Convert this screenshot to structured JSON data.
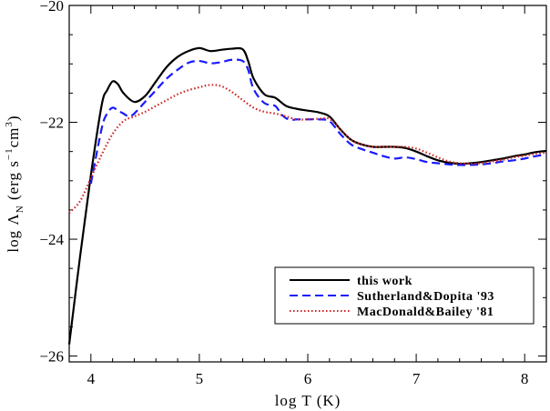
{
  "chart_data": {
    "type": "line",
    "xlabel": "log T (K)",
    "ylabel": {
      "main": "log Λ",
      "sub": "N",
      "units_open": " (erg s",
      "exp1": "−1",
      "units_mid": "cm",
      "exp2": "3",
      "units_close": ")"
    },
    "xlim": [
      3.8,
      8.2
    ],
    "ylim": [
      -26.1,
      -20.0
    ],
    "xticks": [
      4,
      5,
      6,
      7,
      8
    ],
    "xtick_labels": [
      "4",
      "5",
      "6",
      "7",
      "8"
    ],
    "yticks": [
      -26,
      -24,
      -22,
      -20
    ],
    "ytick_labels": [
      "−26",
      "−24",
      "−22",
      "−20"
    ],
    "grid": false,
    "legend_position": "bottom-right",
    "series": [
      {
        "name": "this work",
        "color": "#000000",
        "style": "solid",
        "x": [
          3.8,
          3.9,
          4.0,
          4.1,
          4.15,
          4.2,
          4.25,
          4.3,
          4.4,
          4.5,
          4.6,
          4.7,
          4.8,
          4.9,
          5.0,
          5.1,
          5.2,
          5.3,
          5.4,
          5.45,
          5.5,
          5.6,
          5.7,
          5.8,
          5.9,
          6.0,
          6.1,
          6.2,
          6.3,
          6.4,
          6.5,
          6.6,
          6.7,
          6.8,
          6.9,
          7.0,
          7.1,
          7.2,
          7.3,
          7.4,
          7.5,
          7.6,
          7.7,
          7.8,
          7.9,
          8.0,
          8.1,
          8.2
        ],
        "y": [
          -25.8,
          -24.3,
          -22.9,
          -21.7,
          -21.45,
          -21.3,
          -21.35,
          -21.5,
          -21.65,
          -21.55,
          -21.3,
          -21.05,
          -20.88,
          -20.78,
          -20.73,
          -20.78,
          -20.76,
          -20.74,
          -20.75,
          -20.95,
          -21.25,
          -21.52,
          -21.58,
          -21.72,
          -21.77,
          -21.8,
          -21.83,
          -21.9,
          -22.12,
          -22.3,
          -22.38,
          -22.42,
          -22.42,
          -22.42,
          -22.44,
          -22.5,
          -22.58,
          -22.65,
          -22.69,
          -22.71,
          -22.7,
          -22.68,
          -22.65,
          -22.62,
          -22.58,
          -22.55,
          -22.51,
          -22.49
        ]
      },
      {
        "name": "Sutherland&Dopita '93",
        "color": "#1a1aff",
        "style": "dashed",
        "x": [
          4.0,
          4.1,
          4.15,
          4.2,
          4.25,
          4.3,
          4.35,
          4.4,
          4.5,
          4.6,
          4.7,
          4.8,
          4.9,
          5.0,
          5.1,
          5.2,
          5.3,
          5.4,
          5.45,
          5.5,
          5.6,
          5.7,
          5.75,
          5.8,
          5.85,
          5.9,
          6.0,
          6.1,
          6.2,
          6.3,
          6.4,
          6.5,
          6.6,
          6.7,
          6.8,
          6.9,
          7.0,
          7.1,
          7.2,
          7.3,
          7.4,
          7.5,
          7.6,
          7.7,
          7.8,
          7.9,
          8.0,
          8.1,
          8.2
        ],
        "y": [
          -23.05,
          -22.1,
          -21.85,
          -21.75,
          -21.8,
          -21.85,
          -21.9,
          -21.85,
          -21.65,
          -21.45,
          -21.25,
          -21.1,
          -20.98,
          -20.95,
          -20.99,
          -20.97,
          -20.93,
          -20.95,
          -21.1,
          -21.43,
          -21.67,
          -21.72,
          -21.85,
          -21.93,
          -21.96,
          -21.95,
          -21.95,
          -21.95,
          -21.98,
          -22.2,
          -22.38,
          -22.46,
          -22.52,
          -22.58,
          -22.62,
          -22.6,
          -22.63,
          -22.68,
          -22.7,
          -22.72,
          -22.73,
          -22.73,
          -22.72,
          -22.7,
          -22.67,
          -22.65,
          -22.62,
          -22.58,
          -22.55
        ]
      },
      {
        "name": "MacDonald&Bailey '81",
        "color": "#cc2222",
        "style": "dotted",
        "x": [
          3.8,
          3.9,
          4.0,
          4.1,
          4.2,
          4.3,
          4.4,
          4.5,
          4.6,
          4.7,
          4.8,
          4.9,
          5.0,
          5.1,
          5.2,
          5.3,
          5.4,
          5.5,
          5.6,
          5.7,
          5.8,
          5.9,
          6.0,
          6.1,
          6.2,
          6.3,
          6.4,
          6.5,
          6.6,
          6.7,
          6.8,
          6.9,
          7.0,
          7.1,
          7.2,
          7.3,
          7.4,
          7.5,
          7.6,
          7.7,
          7.8,
          7.9,
          8.0,
          8.1,
          8.2
        ],
        "y": [
          -23.55,
          -23.35,
          -22.95,
          -22.55,
          -22.2,
          -21.98,
          -21.9,
          -21.82,
          -21.72,
          -21.62,
          -21.52,
          -21.45,
          -21.4,
          -21.36,
          -21.38,
          -21.48,
          -21.62,
          -21.75,
          -21.82,
          -21.85,
          -21.9,
          -21.95,
          -21.95,
          -21.94,
          -21.94,
          -22.12,
          -22.3,
          -22.38,
          -22.42,
          -22.42,
          -22.42,
          -22.42,
          -22.45,
          -22.52,
          -22.6,
          -22.67,
          -22.7,
          -22.71,
          -22.7,
          -22.67,
          -22.64,
          -22.6,
          -22.57,
          -22.54,
          -22.52
        ]
      }
    ]
  }
}
